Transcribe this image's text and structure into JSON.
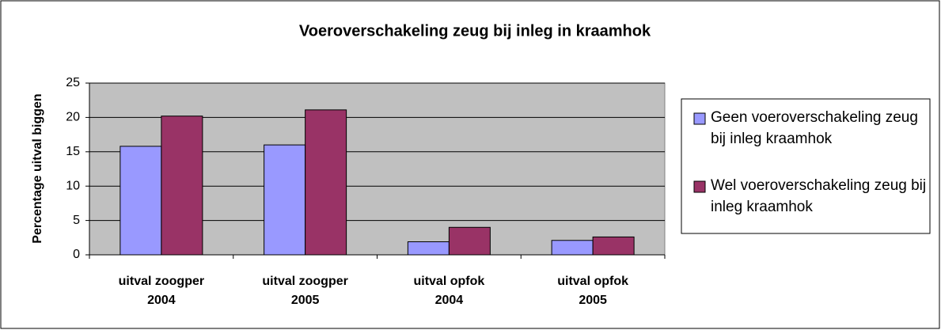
{
  "chart_data": {
    "type": "bar",
    "title": "Voeroverschakeling zeug bij inleg in kraamhok",
    "y_label": "Percentage uitval biggen",
    "categories": [
      "uitval zoogper 2004",
      "uitval zoogper 2005",
      "uitval opfok 2004",
      "uitval opfok 2005"
    ],
    "series": [
      {
        "name": "Geen voeroverschakeling zeug bij inleg kraamhok",
        "color": "#9999ff",
        "values": [
          15.8,
          16.0,
          1.9,
          2.1
        ]
      },
      {
        "name": "Wel voeroverschakeling zeug bij inleg kraamhok",
        "color": "#993366",
        "values": [
          20.2,
          21.1,
          4.0,
          2.6
        ]
      }
    ],
    "ylim": [
      0,
      25
    ],
    "yticks": [
      0,
      5,
      10,
      15,
      20,
      25
    ],
    "grid": true,
    "legend": "right",
    "plot_background": "#c0c0c0"
  }
}
